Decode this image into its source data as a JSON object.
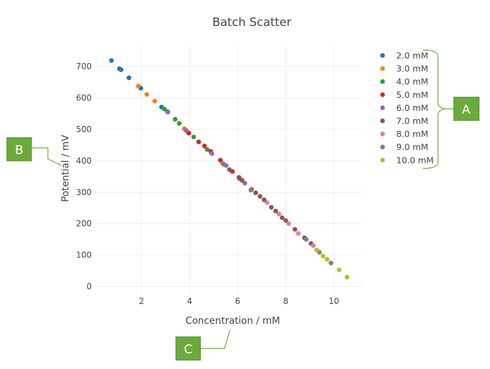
{
  "chart_data": {
    "type": "scatter",
    "title": "Batch Scatter",
    "xlabel": "Concentration / mM",
    "ylabel": "Potential / mV",
    "xlim": [
      0.1,
      11.2
    ],
    "ylim": [
      -25,
      770
    ],
    "xticks": [
      2,
      4,
      6,
      8,
      10
    ],
    "yticks": [
      0,
      100,
      200,
      300,
      400,
      500,
      600,
      700
    ],
    "grid": true,
    "legend_position": "right",
    "series": [
      {
        "name": "2.0 mM",
        "color": "#1f77b4",
        "x": [
          0.75,
          1.08,
          1.15,
          1.48,
          1.97,
          2.83
        ],
        "y": [
          719,
          693,
          690,
          664,
          631,
          571
        ]
      },
      {
        "name": "3.0 mM",
        "color": "#ff7f0e",
        "x": [
          1.87,
          2.22,
          2.55,
          3.78,
          3.93
        ],
        "y": [
          638,
          611,
          590,
          502,
          491
        ]
      },
      {
        "name": "4.0 mM",
        "color": "#2ca02c",
        "x": [
          2.95,
          3.07,
          3.4,
          3.57,
          4.17,
          4.73,
          5.42
        ],
        "y": [
          565,
          557,
          532,
          519,
          476,
          436,
          389
        ]
      },
      {
        "name": "5.0 mM",
        "color": "#d62728",
        "x": [
          3.97,
          4.38,
          4.62,
          4.88,
          5.28,
          5.78,
          6.08
        ],
        "y": [
          488,
          460,
          447,
          430,
          402,
          366,
          344
        ]
      },
      {
        "name": "6.0 mM",
        "color": "#9467bd",
        "x": [
          3.1,
          3.85,
          4.93,
          5.52,
          6.3
        ],
        "y": [
          555,
          497,
          423,
          385,
          329
        ]
      },
      {
        "name": "7.0 mM",
        "color": "#8c564b",
        "x": [
          5.66,
          6.05,
          6.18,
          6.58,
          6.75,
          6.93,
          7.1,
          7.4,
          7.58,
          7.85,
          8.0,
          8.38,
          8.78,
          9.05
        ],
        "y": [
          372,
          347,
          338,
          309,
          298,
          287,
          276,
          252,
          240,
          219,
          210,
          182,
          155,
          137
        ]
      },
      {
        "name": "8.0 mM",
        "color": "#e377c2",
        "x": [
          7.22,
          7.72,
          8.12,
          8.52,
          9.15
        ],
        "y": [
          267,
          231,
          200,
          169,
          130
        ]
      },
      {
        "name": "9.0 mM",
        "color": "#7f7f7f",
        "x": [
          5.38,
          6.55,
          8.85,
          9.4,
          9.88
        ],
        "y": [
          391,
          307,
          150,
          109,
          75
        ]
      },
      {
        "name": "10.0 mM",
        "color": "#bcbd22",
        "x": [
          9.28,
          9.55,
          9.72,
          10.22,
          10.55
        ],
        "y": [
          116,
          97,
          87,
          53,
          30
        ]
      }
    ]
  },
  "annotations": [
    {
      "label": "A"
    },
    {
      "label": "B"
    },
    {
      "label": "C"
    }
  ],
  "callout_color": "#6aaa3a"
}
